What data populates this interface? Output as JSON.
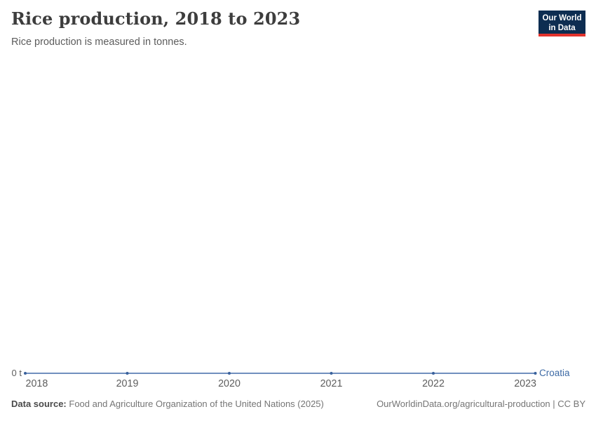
{
  "page": {
    "background": "#ffffff"
  },
  "header": {
    "title": "Rice production, 2018 to 2023",
    "subtitle": "Rice production is measured in tonnes."
  },
  "logo": {
    "line1": "Our World",
    "line2": "in Data",
    "background": "#0d2d51",
    "accent": "#e2332d"
  },
  "chart_data": {
    "type": "line",
    "title": "Rice production, 2018 to 2023",
    "unit": "tonnes",
    "x": [
      2018,
      2019,
      2020,
      2021,
      2022,
      2023
    ],
    "series": [
      {
        "name": "Croatia",
        "values": [
          0,
          0,
          0,
          0,
          0,
          0
        ],
        "color": "#5b7fb5",
        "marker_color": "#39619c",
        "label_color": "#3d6aa5"
      }
    ],
    "y_axis": {
      "tick_label": "0 t",
      "min": 0
    },
    "x_axis": {
      "tick_labels": [
        "2018",
        "2019",
        "2020",
        "2021",
        "2022",
        "2023"
      ],
      "tick_color": "#5e5e5e"
    },
    "grid": false,
    "legend_position": "end-of-line"
  },
  "footer": {
    "source_label": "Data source:",
    "source_text": "Food and Agriculture Organization of the United Nations (2025)",
    "attribution": "OurWorldinData.org/agricultural-production | CC BY"
  }
}
